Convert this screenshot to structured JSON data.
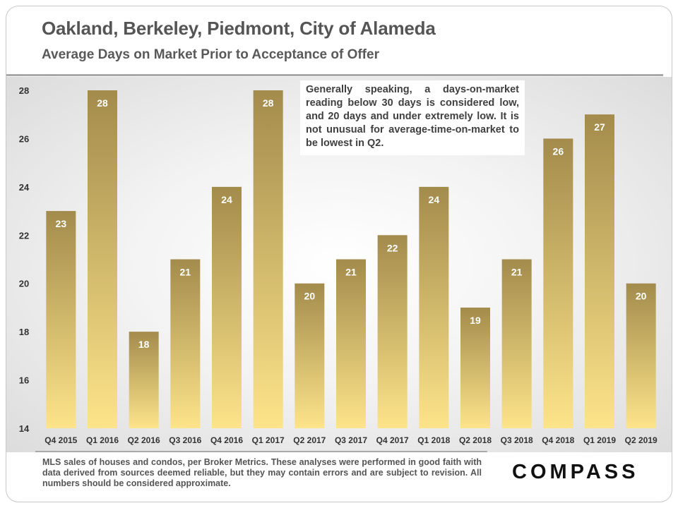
{
  "header": {
    "title": "Oakland, Berkeley, Piedmont, City of Alameda",
    "subtitle": "Average Days on Market Prior to Acceptance of Offer"
  },
  "annotation": "Generally speaking, a days-on-market reading below 30 days is considered low, and 20 days and under extremely low. It is not unusual for average-time-on-market to be lowest in Q2.",
  "footnote": "MLS sales of houses and condos, per Broker Metrics. These analyses were performed in good faith with data derived from sources deemed reliable, but they may contain errors and are subject to revision. All numbers should be considered  approximate.",
  "logo": "COMPASS",
  "colors": {
    "bar_top": "#a38b4c",
    "bar_bottom": "#fde48a",
    "bar_label": "#ffffff",
    "axis_text": "#333333"
  },
  "chart_data": {
    "type": "bar",
    "title": "Average Days on Market Prior to Acceptance of Offer",
    "xlabel": "",
    "ylabel": "",
    "ylim": [
      14,
      28
    ],
    "yticks": [
      14,
      16,
      18,
      20,
      22,
      24,
      26,
      28
    ],
    "grid": false,
    "categories": [
      "Q4 2015",
      "Q1 2016",
      "Q2 2016",
      "Q3 2016",
      "Q4 2016",
      "Q1 2017",
      "Q2 2017",
      "Q3 2017",
      "Q4 2017",
      "Q1 2018",
      "Q2 2018",
      "Q3 2018",
      "Q4 2018",
      "Q1 2019",
      "Q2 2019"
    ],
    "values": [
      23,
      28,
      18,
      21,
      24,
      28,
      20,
      21,
      22,
      24,
      19,
      21,
      26,
      27,
      20
    ],
    "data_labels": true
  }
}
